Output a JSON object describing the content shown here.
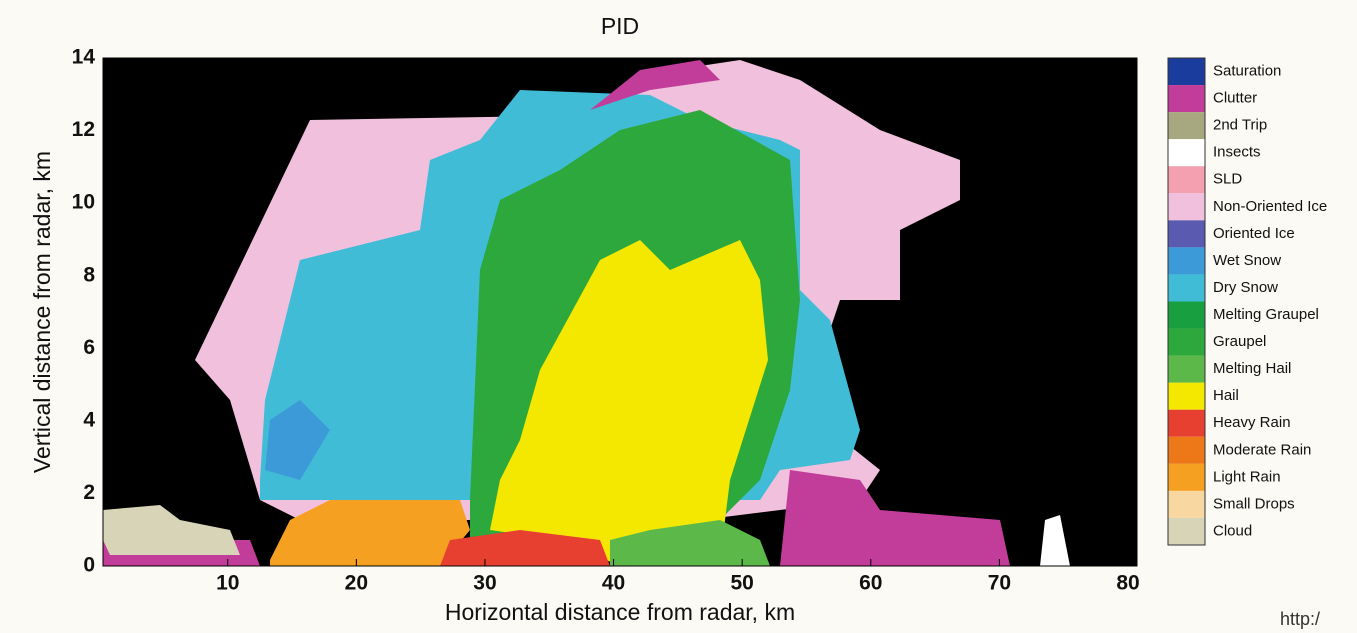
{
  "chart_data": {
    "type": "image",
    "title": "PID",
    "x_label": "Horizontal distance from radar, km",
    "y_label": "Vertical distance from radar, km",
    "xlim": [
      0.3,
      80.7
    ],
    "xticks": [
      10,
      20,
      30,
      40,
      50,
      60,
      70,
      80
    ],
    "ylim": [
      0,
      14
    ],
    "yticks": [
      0,
      2,
      4,
      6,
      8,
      10,
      12,
      14
    ],
    "background": "#000000",
    "legend": {
      "position": "right",
      "entries": [
        {
          "name": "Saturation",
          "color": "#1a3c9c"
        },
        {
          "name": "Clutter",
          "color": "#c23c9a"
        },
        {
          "name": "2nd Trip",
          "color": "#a8a880"
        },
        {
          "name": "Insects",
          "color": "#ffffff"
        },
        {
          "name": "SLD",
          "color": "#f4a0b0"
        },
        {
          "name": "Non-Oriented Ice",
          "color": "#f0c0dc"
        },
        {
          "name": "Oriented Ice",
          "color": "#5a5ab0"
        },
        {
          "name": "Wet Snow",
          "color": "#3c9ad8"
        },
        {
          "name": "Dry Snow",
          "color": "#40bcd6"
        },
        {
          "name": "Melting Graupel",
          "color": "#18a040"
        },
        {
          "name": "Graupel",
          "color": "#2ca83c"
        },
        {
          "name": "Melting Hail",
          "color": "#5cb848"
        },
        {
          "name": "Hail",
          "color": "#f5e800"
        },
        {
          "name": "Heavy Rain",
          "color": "#e84030"
        },
        {
          "name": "Moderate Rain",
          "color": "#ec7818"
        },
        {
          "name": "Light Rain",
          "color": "#f5a020"
        },
        {
          "name": "Small Drops",
          "color": "#f8d8a0"
        },
        {
          "name": "Cloud",
          "color": "#d8d4b8"
        }
      ]
    }
  },
  "footer_text": "http:/"
}
